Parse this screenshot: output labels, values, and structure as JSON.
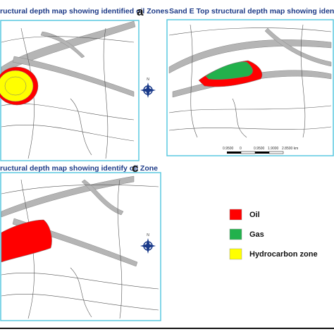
{
  "panels": [
    {
      "label": "a",
      "title": "ructural depth map showing identified oil Zones"
    },
    {
      "label": "",
      "title": "Sand E Top structural depth map showing identified oil a"
    },
    {
      "label": "c",
      "title": "ructural depth map showing identify oil Zone"
    }
  ],
  "scale_bar": [
    "0.9500",
    "0",
    "0.9500",
    "1.9000",
    "2.8500 km"
  ],
  "legend": [
    {
      "name": "Oil",
      "color": "#ff0000"
    },
    {
      "name": "Gas",
      "color": "#22b14c"
    },
    {
      "name": "Hydrocarbon zone",
      "color": "#ffff00"
    }
  ]
}
